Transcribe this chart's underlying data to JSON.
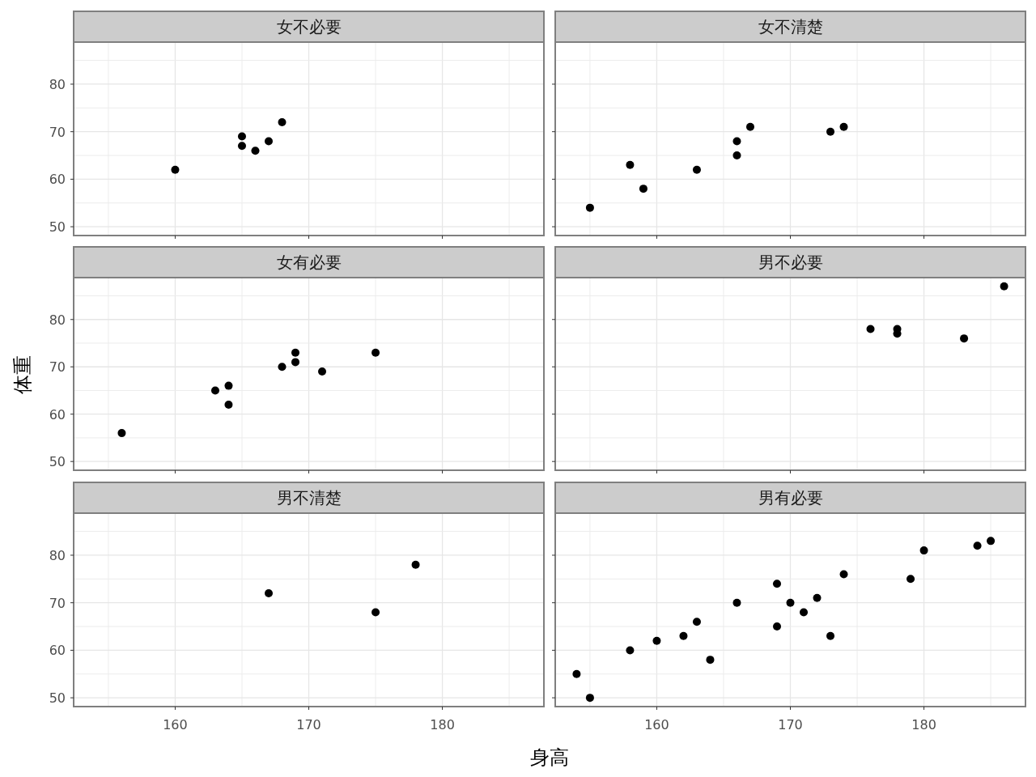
{
  "chart_data": [
    {
      "type": "scatter",
      "title": "女不必要",
      "x": [
        160,
        165,
        165,
        166,
        167,
        168
      ],
      "values": [
        62,
        69,
        67,
        66,
        68,
        72
      ],
      "color": "#000000",
      "xlim": [
        152.4,
        187.6
      ],
      "ylim": [
        48.15,
        88.85
      ],
      "xticks": [
        {
          "value": 155,
          "label": null
        },
        160,
        {
          "value": 165,
          "label": null
        },
        170,
        {
          "value": 175,
          "label": null
        },
        180,
        {
          "value": 185,
          "label": null
        }
      ],
      "yticks": [
        50,
        {
          "value": 55,
          "label": null
        },
        60,
        {
          "value": 65,
          "label": null
        },
        70,
        {
          "value": 75,
          "label": null
        },
        80,
        {
          "value": 85,
          "label": null
        }
      ],
      "grid": true,
      "tick_labels": "y"
    },
    {
      "type": "scatter",
      "title": "女不清楚",
      "x": [
        155,
        158,
        159,
        163,
        166,
        166,
        167,
        173,
        174
      ],
      "values": [
        54,
        63,
        58,
        62,
        68,
        65,
        71,
        70,
        71
      ],
      "color": "#000000",
      "xlim": [
        152.4,
        187.6
      ],
      "ylim": [
        48.15,
        88.85
      ],
      "xticks": [
        {
          "value": 155,
          "label": null
        },
        160,
        {
          "value": 165,
          "label": null
        },
        170,
        {
          "value": 175,
          "label": null
        },
        180,
        {
          "value": 185,
          "label": null
        }
      ],
      "yticks": [
        50,
        {
          "value": 55,
          "label": null
        },
        60,
        {
          "value": 65,
          "label": null
        },
        70,
        {
          "value": 75,
          "label": null
        },
        80,
        {
          "value": 85,
          "label": null
        }
      ],
      "grid": true,
      "tick_labels": false
    },
    {
      "type": "scatter",
      "title": "女有必要",
      "ylabel": "体重",
      "x": [
        156,
        163,
        164,
        164,
        168,
        169,
        169,
        171,
        175
      ],
      "values": [
        56,
        65,
        66,
        62,
        70,
        73,
        71,
        69,
        73
      ],
      "color": "#000000",
      "xlim": [
        152.4,
        187.6
      ],
      "ylim": [
        48.15,
        88.85
      ],
      "xticks": [
        {
          "value": 155,
          "label": null
        },
        160,
        {
          "value": 165,
          "label": null
        },
        170,
        {
          "value": 175,
          "label": null
        },
        180,
        {
          "value": 185,
          "label": null
        }
      ],
      "yticks": [
        50,
        {
          "value": 55,
          "label": null
        },
        60,
        {
          "value": 65,
          "label": null
        },
        70,
        {
          "value": 75,
          "label": null
        },
        80,
        {
          "value": 85,
          "label": null
        }
      ],
      "grid": true,
      "tick_labels": "y"
    },
    {
      "type": "scatter",
      "title": "男不必要",
      "x": [
        176,
        178,
        178,
        183,
        186
      ],
      "values": [
        78,
        78,
        77,
        76,
        87
      ],
      "color": "#000000",
      "xlim": [
        152.4,
        187.6
      ],
      "ylim": [
        48.15,
        88.85
      ],
      "xticks": [
        {
          "value": 155,
          "label": null
        },
        160,
        {
          "value": 165,
          "label": null
        },
        170,
        {
          "value": 175,
          "label": null
        },
        180,
        {
          "value": 185,
          "label": null
        }
      ],
      "yticks": [
        50,
        {
          "value": 55,
          "label": null
        },
        60,
        {
          "value": 65,
          "label": null
        },
        70,
        {
          "value": 75,
          "label": null
        },
        80,
        {
          "value": 85,
          "label": null
        }
      ],
      "grid": true,
      "tick_labels": false
    },
    {
      "type": "scatter",
      "title": "男不清楚",
      "xlabel": "身高",
      "x": [
        167,
        175,
        178
      ],
      "values": [
        72,
        68,
        78
      ],
      "color": "#000000",
      "xlim": [
        152.4,
        187.6
      ],
      "ylim": [
        48.15,
        88.85
      ],
      "xticks": [
        {
          "value": 155,
          "label": null
        },
        160,
        {
          "value": 165,
          "label": null
        },
        170,
        {
          "value": 175,
          "label": null
        },
        180,
        {
          "value": 185,
          "label": null
        }
      ],
      "yticks": [
        50,
        {
          "value": 55,
          "label": null
        },
        60,
        {
          "value": 65,
          "label": null
        },
        70,
        {
          "value": 75,
          "label": null
        },
        80,
        {
          "value": 85,
          "label": null
        }
      ],
      "grid": true
    },
    {
      "type": "scatter",
      "title": "男有必要",
      "x": [
        154,
        155,
        158,
        160,
        162,
        163,
        164,
        166,
        169,
        169,
        170,
        171,
        172,
        173,
        174,
        179,
        180,
        184,
        185
      ],
      "values": [
        55,
        50,
        60,
        62,
        63,
        66,
        58,
        70,
        74,
        65,
        70,
        68,
        71,
        63,
        76,
        75,
        81,
        82,
        83
      ],
      "color": "#000000",
      "xlim": [
        152.4,
        187.6
      ],
      "ylim": [
        48.15,
        88.85
      ],
      "xticks": [
        {
          "value": 155,
          "label": null
        },
        160,
        {
          "value": 165,
          "label": null
        },
        170,
        {
          "value": 175,
          "label": null
        },
        180,
        {
          "value": 185,
          "label": null
        }
      ],
      "yticks": [
        50,
        {
          "value": 55,
          "label": null
        },
        60,
        {
          "value": 65,
          "label": null
        },
        70,
        {
          "value": 75,
          "label": null
        },
        80,
        {
          "value": 85,
          "label": null
        }
      ],
      "grid": true,
      "tick_labels": "x"
    }
  ]
}
